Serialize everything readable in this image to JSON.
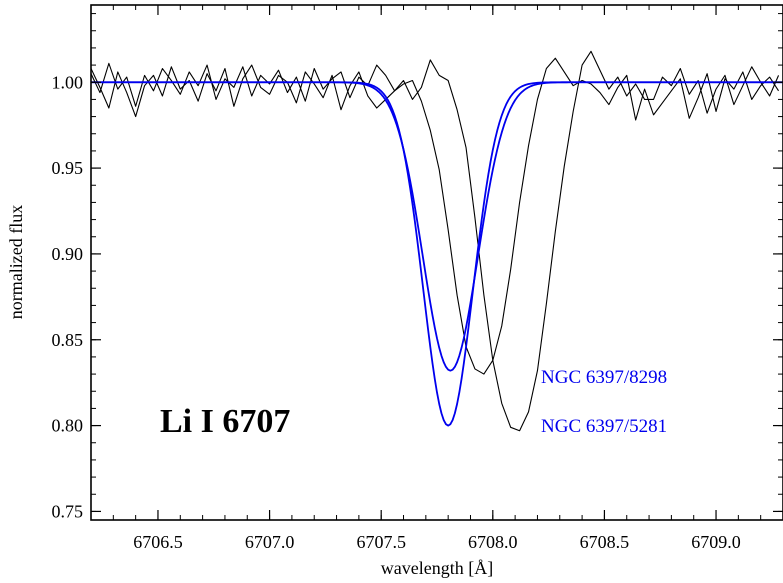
{
  "chart_data": {
    "type": "line",
    "xlabel": "wavelength [Å]",
    "ylabel": "normalized flux",
    "xlim": [
      6706.2,
      6709.3
    ],
    "ylim": [
      0.745,
      1.045
    ],
    "x_ticks": [
      "6706.5",
      "6707.0",
      "6707.5",
      "6708.0",
      "6708.5",
      "6709.0"
    ],
    "x_tick_values": [
      6706.5,
      6707.0,
      6707.5,
      6708.0,
      6708.5,
      6709.0
    ],
    "y_ticks": [
      "0.75",
      "0.80",
      "0.85",
      "0.90",
      "0.95",
      "1.00"
    ],
    "y_tick_values": [
      0.75,
      0.8,
      0.85,
      0.9,
      0.95,
      1.0
    ],
    "grid": false,
    "annotations": {
      "line_label": "Li I 6707",
      "star_a": "NGC 6397/8298",
      "star_b": "NGC 6397/5281"
    },
    "colors": {
      "observed": "#000000",
      "model": "#0000ee",
      "axes": "#000000"
    },
    "series": [
      {
        "kind": "observed",
        "x": [
          6706.2,
          6706.24,
          6706.28,
          6706.32,
          6706.36,
          6706.4,
          6706.44,
          6706.48,
          6706.52,
          6706.56,
          6706.6,
          6706.64,
          6706.68,
          6706.72,
          6706.76,
          6706.8,
          6706.84,
          6706.88,
          6706.92,
          6706.96,
          6707.0,
          6707.04,
          6707.08,
          6707.12,
          6707.16,
          6707.2,
          6707.24,
          6707.28,
          6707.32,
          6707.36,
          6707.4,
          6707.44,
          6707.48,
          6707.52,
          6707.56,
          6707.6,
          6707.64,
          6707.68,
          6707.72,
          6707.76,
          6707.8,
          6707.84,
          6707.88,
          6707.92,
          6707.96,
          6708.0,
          6708.04,
          6708.08,
          6708.12,
          6708.16,
          6708.2,
          6708.24,
          6708.28,
          6708.32,
          6708.36,
          6708.4,
          6708.44,
          6708.48,
          6708.52,
          6708.56,
          6708.6,
          6708.64,
          6708.68,
          6708.72,
          6708.76,
          6708.8,
          6708.84,
          6708.88,
          6708.92,
          6708.96,
          6709.0,
          6709.04,
          6709.08,
          6709.12,
          6709.16,
          6709.2,
          6709.24,
          6709.28
        ],
        "y": [
          1.005,
          0.994,
          1.011,
          0.996,
          1.003,
          0.986,
          1.004,
          0.995,
          1.008,
          1.001,
          0.993,
          1.006,
          0.998,
          1.01,
          0.99,
          1.002,
          0.997,
          1.009,
          0.992,
          1.004,
          0.999,
          1.007,
          0.994,
          1.003,
          0.989,
          1.008,
          0.996,
          1.002,
          1.006,
          0.991,
          1.003,
          0.998,
          1.01,
          1.004,
          0.995,
          1.001,
          0.99,
          0.997,
          1.013,
          1.004,
          1.001,
          0.984,
          0.962,
          0.921,
          0.876,
          0.838,
          0.813,
          0.799,
          0.797,
          0.808,
          0.832,
          0.871,
          0.913,
          0.951,
          0.983,
          1.01,
          1.018,
          1.007,
          0.996,
          1.003,
          0.992,
          0.999,
          0.99,
          0.99,
          1.003,
          0.998,
          1.008,
          0.993,
          1.001,
          0.982,
          0.996,
          1.004,
          0.987,
          0.998,
          1.009,
          1.0,
          0.992,
          1.004
        ]
      },
      {
        "kind": "observed",
        "x": [
          6706.2,
          6706.24,
          6706.28,
          6706.32,
          6706.36,
          6706.4,
          6706.44,
          6706.48,
          6706.52,
          6706.56,
          6706.6,
          6706.64,
          6706.68,
          6706.72,
          6706.76,
          6706.8,
          6706.84,
          6706.88,
          6706.92,
          6706.96,
          6707.0,
          6707.04,
          6707.08,
          6707.12,
          6707.16,
          6707.2,
          6707.24,
          6707.28,
          6707.32,
          6707.36,
          6707.4,
          6707.44,
          6707.48,
          6707.52,
          6707.56,
          6707.6,
          6707.64,
          6707.68,
          6707.72,
          6707.76,
          6707.8,
          6707.84,
          6707.88,
          6707.92,
          6707.96,
          6708.0,
          6708.04,
          6708.08,
          6708.12,
          6708.16,
          6708.2,
          6708.24,
          6708.28,
          6708.32,
          6708.36,
          6708.4,
          6708.44,
          6708.48,
          6708.52,
          6708.56,
          6708.6,
          6708.64,
          6708.68,
          6708.72,
          6708.76,
          6708.8,
          6708.84,
          6708.88,
          6708.92,
          6708.96,
          6709.0,
          6709.04,
          6709.08,
          6709.12,
          6709.16,
          6709.2,
          6709.24,
          6709.28
        ],
        "y": [
          1.008,
          0.997,
          0.985,
          1.006,
          0.994,
          0.98,
          0.998,
          1.004,
          0.992,
          1.009,
          0.996,
          1.001,
          0.989,
          1.005,
          0.995,
          1.008,
          0.986,
          1.002,
          1.01,
          0.997,
          0.993,
          1.004,
          1.0,
          0.988,
          1.006,
          0.999,
          0.991,
          1.004,
          0.984,
          0.998,
          1.006,
          0.992,
          0.985,
          0.99,
          0.995,
          0.999,
          1.001,
          0.989,
          0.972,
          0.949,
          0.914,
          0.876,
          0.846,
          0.833,
          0.83,
          0.838,
          0.858,
          0.891,
          0.93,
          0.963,
          0.99,
          1.008,
          1.014,
          1.006,
          0.998,
          1.001,
          0.999,
          0.994,
          0.987,
          0.997,
          1.004,
          0.978,
          0.996,
          0.981,
          0.988,
          0.995,
          1.002,
          0.979,
          0.991,
          1.005,
          0.983,
          1.002,
          0.996,
          1.006,
          0.99,
          0.998,
          1.003,
          0.995
        ]
      },
      {
        "kind": "model",
        "center": 6707.8,
        "depth": 0.2,
        "sigma": 0.111
      },
      {
        "kind": "model",
        "center": 6707.81,
        "depth": 0.168,
        "sigma": 0.123
      }
    ]
  }
}
